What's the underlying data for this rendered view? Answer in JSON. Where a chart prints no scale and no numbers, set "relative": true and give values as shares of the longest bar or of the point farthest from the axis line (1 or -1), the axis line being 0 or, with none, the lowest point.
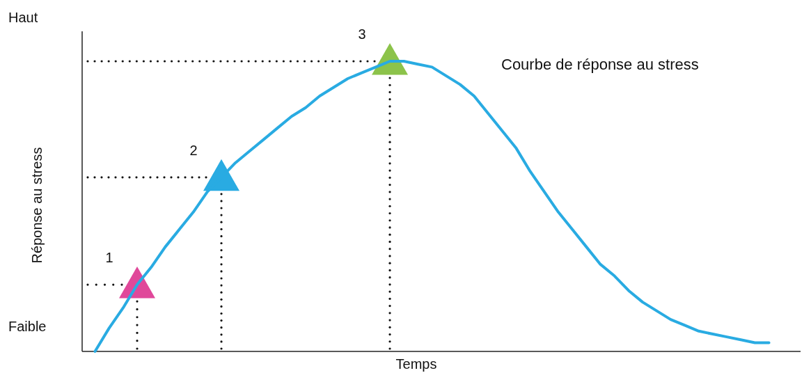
{
  "chart_data": {
    "type": "line",
    "title": "Courbe de réponse au stress",
    "xlabel": "Temps",
    "ylabel": "Réponse au stress",
    "relative": true,
    "annotations": [
      "Haut",
      "Faible",
      "1",
      "2",
      "3"
    ],
    "categories": [
      null,
      null,
      null,
      null,
      null,
      null,
      null,
      null,
      null,
      null,
      null,
      null,
      null,
      null,
      null,
      null,
      null,
      null,
      null,
      null,
      null,
      null,
      null,
      null,
      null,
      null,
      null,
      null,
      null,
      null,
      null,
      null,
      null,
      null,
      null,
      null,
      null,
      null,
      null,
      null,
      null,
      null,
      null,
      null,
      null,
      null,
      null,
      null,
      null
    ],
    "series": [
      {
        "color": "#29abe2",
        "values": [
          0,
          0.08,
          0.15,
          0.23,
          0.29,
          0.36,
          0.42,
          0.48,
          0.55,
          0.6,
          0.65,
          0.69,
          0.73,
          0.77,
          0.81,
          0.84,
          0.88,
          0.91,
          0.94,
          0.96,
          0.98,
          1.0,
          1.0,
          0.99,
          0.98,
          0.95,
          0.92,
          0.88,
          0.82,
          0.76,
          0.7,
          0.62,
          0.55,
          0.48,
          0.42,
          0.36,
          0.3,
          0.26,
          0.21,
          0.17,
          0.14,
          0.11,
          0.09,
          0.07,
          0.06,
          0.05,
          0.04,
          0.03,
          0.03
        ]
      }
    ]
  }
}
